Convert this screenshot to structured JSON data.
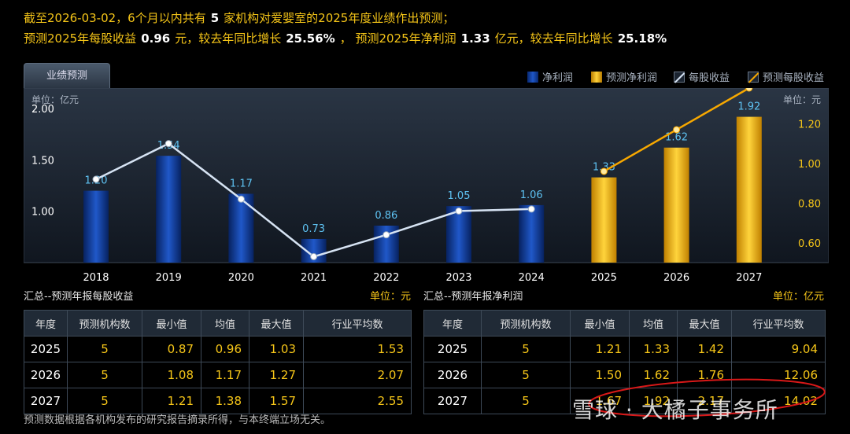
{
  "summary": {
    "l1_a": "截至2026-03-02，6个月以内共有",
    "l1_count": "5",
    "l1_b": "家机构对爱婴室的2025年度业绩作出预测；",
    "l2_a": "预测2025年每股收益",
    "l2_eps": "0.96",
    "l2_b": "元，较去年同比增长",
    "l2_eps_growth": "25.56%",
    "l2_c": "，  预测2025年净利润",
    "l2_np": "1.33",
    "l2_d": "亿元，较去年同比增长",
    "l2_np_growth": "25.18%"
  },
  "tab_label": "业绩预测",
  "legend": {
    "net_profit": "净利润",
    "forecast_net_profit": "预测净利润",
    "eps": "每股收益",
    "forecast_eps": "预测每股收益"
  },
  "units": {
    "left": "单位：亿元",
    "right": "单位：元",
    "eps_table": "单位：元",
    "np_table": "单位：亿元"
  },
  "colors": {
    "actual_bar": "#1c4fb8",
    "forecast_bar": "#f3b800",
    "eps_line": "#d6e3f3",
    "forecast_eps_line": "#f7a800",
    "accent_text": "#f5c518"
  },
  "chart_data": {
    "type": "bar",
    "categories": [
      "2018",
      "2019",
      "2020",
      "2021",
      "2022",
      "2023",
      "2024",
      "2025",
      "2026",
      "2027"
    ],
    "series": [
      {
        "name": "净利润",
        "kind": "bar",
        "axis": "left",
        "values": [
          1.2,
          1.54,
          1.17,
          0.73,
          0.86,
          1.05,
          1.06,
          null,
          null,
          null
        ]
      },
      {
        "name": "预测净利润",
        "kind": "bar",
        "axis": "left",
        "values": [
          null,
          null,
          null,
          null,
          null,
          null,
          null,
          1.33,
          1.62,
          1.92
        ]
      },
      {
        "name": "每股收益",
        "kind": "line",
        "axis": "right",
        "values": [
          0.92,
          1.1,
          0.82,
          0.53,
          0.64,
          0.76,
          0.77,
          null,
          null,
          null
        ]
      },
      {
        "name": "预测每股收益",
        "kind": "line",
        "axis": "right",
        "values": [
          null,
          null,
          null,
          null,
          null,
          null,
          null,
          0.96,
          1.17,
          1.38
        ]
      }
    ],
    "left_axis": {
      "label": "单位：亿元",
      "ticks": [
        "1.00",
        "1.50",
        "2.00"
      ],
      "ylim": [
        0.5,
        2.2
      ]
    },
    "right_axis": {
      "label": "单位：元",
      "ticks": [
        "0.60",
        "0.80",
        "1.00",
        "1.20"
      ],
      "ylim": [
        0.5,
        1.38
      ]
    },
    "grid": false,
    "legend_position": "top-right"
  },
  "eps_table": {
    "title": "汇总--预测年报每股收益",
    "headers": [
      "年度",
      "预测机构数",
      "最小值",
      "均值",
      "最大值",
      "行业平均数"
    ],
    "rows": [
      [
        "2025",
        "5",
        "0.87",
        "0.96",
        "1.03",
        "1.53"
      ],
      [
        "2026",
        "5",
        "1.08",
        "1.17",
        "1.27",
        "2.07"
      ],
      [
        "2027",
        "5",
        "1.21",
        "1.38",
        "1.57",
        "2.55"
      ]
    ]
  },
  "np_table": {
    "title": "汇总--预测年报净利润",
    "headers": [
      "年度",
      "预测机构数",
      "最小值",
      "均值",
      "最大值",
      "行业平均数"
    ],
    "rows": [
      [
        "2025",
        "5",
        "1.21",
        "1.33",
        "1.42",
        "9.04"
      ],
      [
        "2026",
        "5",
        "1.50",
        "1.62",
        "1.76",
        "12.06"
      ],
      [
        "2027",
        "5",
        "1.67",
        "1.92",
        "2.17",
        "14.02"
      ]
    ]
  },
  "footnote": "预测数据根据各机构发布的研究报告摘录所得，与本终端立场无关。",
  "watermark": "雪球 · 大橘子事务所"
}
